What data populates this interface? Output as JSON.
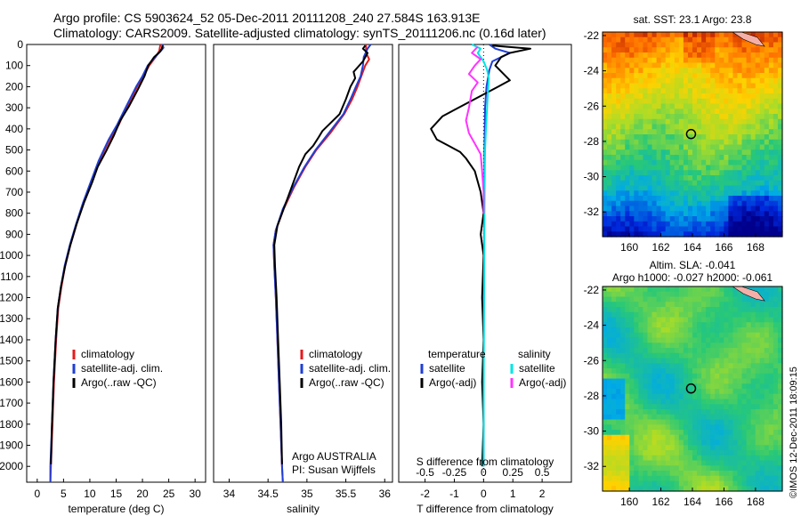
{
  "title_line1": "Argo profile: CS 5903624_52 05-Dec-2011 20111208_240 27.584S 163.913E",
  "title_line2": "Climatology: CARS2009. Satellite-adjusted climatology: synTS_20111206.nc (0.16d later)",
  "credit": "©IMOS 12-Dec-2011 18:09:15",
  "colors": {
    "climatology": "#e41a1c",
    "satellite": "#1f3fd6",
    "argo": "#000000",
    "satellite_salinity": "#00e5e5",
    "argo_salinity": "#ff33ff"
  },
  "chart_data": [
    {
      "id": "temperature",
      "type": "line",
      "xlabel": "temperature (deg C)",
      "ylabel": "",
      "xlim": [
        -2,
        32
      ],
      "ylim": [
        2075,
        0
      ],
      "xticks": [
        0,
        5,
        10,
        15,
        20,
        25,
        30
      ],
      "yticks": [
        0,
        100,
        200,
        300,
        400,
        500,
        600,
        700,
        800,
        900,
        1000,
        1100,
        1200,
        1300,
        1400,
        1500,
        1600,
        1700,
        1800,
        1900,
        2000
      ],
      "legend": [
        "climatology",
        "satellite-adj. clim.",
        "Argo(..raw -QC)"
      ],
      "legend_position": "lower-right",
      "series": [
        {
          "name": "climatology",
          "color": "#e41a1c",
          "points": [
            [
              23.4,
              0
            ],
            [
              23.2,
              30
            ],
            [
              22.5,
              60
            ],
            [
              21.3,
              100
            ],
            [
              20.2,
              150
            ],
            [
              19,
              200
            ],
            [
              17,
              300
            ],
            [
              15.5,
              380
            ],
            [
              13.8,
              450
            ],
            [
              11.8,
              550
            ],
            [
              10.3,
              650
            ],
            [
              8.8,
              750
            ],
            [
              7.5,
              850
            ],
            [
              6.3,
              950
            ],
            [
              5.3,
              1050
            ],
            [
              4.6,
              1150
            ],
            [
              4,
              1250
            ],
            [
              3.6,
              1400
            ],
            [
              3.2,
              1600
            ],
            [
              2.9,
              1800
            ],
            [
              2.6,
              2000
            ],
            [
              2.5,
              2075
            ]
          ]
        },
        {
          "name": "satellite-adj. clim.",
          "color": "#1f3fd6",
          "points": [
            [
              23.8,
              0
            ],
            [
              24,
              15
            ],
            [
              23.5,
              30
            ],
            [
              22.4,
              60
            ],
            [
              21,
              100
            ],
            [
              20,
              150
            ],
            [
              18.8,
              200
            ],
            [
              16.8,
              300
            ],
            [
              15.2,
              380
            ],
            [
              13.6,
              450
            ],
            [
              11.7,
              550
            ],
            [
              10.2,
              650
            ],
            [
              8.7,
              750
            ],
            [
              7.4,
              850
            ],
            [
              6.2,
              950
            ],
            [
              5.2,
              1050
            ],
            [
              4.5,
              1150
            ],
            [
              3.9,
              1250
            ],
            [
              3.5,
              1400
            ],
            [
              3.1,
              1600
            ],
            [
              2.8,
              1800
            ],
            [
              2.5,
              2000
            ],
            [
              2.5,
              2075
            ]
          ]
        },
        {
          "name": "Argo(..raw -QC)",
          "color": "#000000",
          "points": [
            [
              23.8,
              5
            ],
            [
              23.7,
              20
            ],
            [
              23.3,
              35
            ],
            [
              22.2,
              60
            ],
            [
              21.1,
              100
            ],
            [
              20.4,
              150
            ],
            [
              19.2,
              210
            ],
            [
              17.5,
              290
            ],
            [
              15.8,
              360
            ],
            [
              14.6,
              430
            ],
            [
              13.2,
              500
            ],
            [
              11.5,
              580
            ],
            [
              10.5,
              650
            ],
            [
              8.9,
              750
            ],
            [
              7.5,
              850
            ],
            [
              6.3,
              950
            ],
            [
              5.3,
              1050
            ],
            [
              4.5,
              1150
            ],
            [
              3.9,
              1250
            ],
            [
              3.5,
              1400
            ],
            [
              3.1,
              1600
            ],
            [
              2.8,
              1800
            ],
            [
              2.6,
              1990
            ]
          ]
        }
      ]
    },
    {
      "id": "salinity",
      "type": "line",
      "xlabel": "salinity",
      "ylabel": "",
      "xlim": [
        33.8,
        36.1
      ],
      "ylim": [
        2075,
        0
      ],
      "xticks": [
        34,
        34.5,
        35,
        35.5,
        36
      ],
      "xticklabels": [
        "34",
        "34.5",
        "35",
        "35.5",
        "36"
      ],
      "legend": [
        "climatology",
        "satellite-adj. clim.",
        "Argo(..raw -QC)"
      ],
      "legend_position": "lower-right",
      "annotations": [
        "Argo AUSTRALIA",
        "PI: Susan Wijffels"
      ],
      "series": [
        {
          "name": "climatology",
          "color": "#e41a1c",
          "points": [
            [
              35.76,
              0
            ],
            [
              35.76,
              40
            ],
            [
              35.8,
              70
            ],
            [
              35.75,
              100
            ],
            [
              35.7,
              150
            ],
            [
              35.65,
              200
            ],
            [
              35.58,
              260
            ],
            [
              35.48,
              330
            ],
            [
              35.3,
              420
            ],
            [
              35.12,
              500
            ],
            [
              34.98,
              580
            ],
            [
              34.83,
              680
            ],
            [
              34.7,
              780
            ],
            [
              34.6,
              880
            ],
            [
              34.57,
              950
            ],
            [
              34.58,
              1050
            ],
            [
              34.6,
              1200
            ],
            [
              34.62,
              1400
            ],
            [
              34.64,
              1600
            ],
            [
              34.66,
              1800
            ],
            [
              34.68,
              2000
            ],
            [
              34.69,
              2075
            ]
          ]
        },
        {
          "name": "satellite-adj. clim.",
          "color": "#1f3fd6",
          "points": [
            [
              35.82,
              0
            ],
            [
              35.78,
              20
            ],
            [
              35.73,
              60
            ],
            [
              35.72,
              100
            ],
            [
              35.69,
              150
            ],
            [
              35.63,
              200
            ],
            [
              35.56,
              260
            ],
            [
              35.47,
              330
            ],
            [
              35.28,
              420
            ],
            [
              35.11,
              500
            ],
            [
              34.97,
              580
            ],
            [
              34.82,
              680
            ],
            [
              34.69,
              780
            ],
            [
              34.6,
              880
            ],
            [
              34.57,
              950
            ],
            [
              34.58,
              1050
            ],
            [
              34.6,
              1200
            ],
            [
              34.62,
              1400
            ],
            [
              34.64,
              1600
            ],
            [
              34.66,
              1800
            ],
            [
              34.68,
              2000
            ],
            [
              34.69,
              2075
            ]
          ]
        },
        {
          "name": "Argo(..raw -QC)",
          "color": "#000000",
          "points": [
            [
              35.75,
              5
            ],
            [
              35.72,
              20
            ],
            [
              35.78,
              40
            ],
            [
              35.72,
              80
            ],
            [
              35.6,
              130
            ],
            [
              35.62,
              160
            ],
            [
              35.56,
              200
            ],
            [
              35.5,
              260
            ],
            [
              35.42,
              330
            ],
            [
              35.2,
              410
            ],
            [
              35.15,
              440
            ],
            [
              35.08,
              480
            ],
            [
              34.98,
              520
            ],
            [
              34.9,
              580
            ],
            [
              34.82,
              660
            ],
            [
              34.72,
              760
            ],
            [
              34.62,
              860
            ],
            [
              34.58,
              950
            ],
            [
              34.59,
              1050
            ],
            [
              34.61,
              1200
            ],
            [
              34.63,
              1400
            ],
            [
              34.65,
              1600
            ],
            [
              34.67,
              1800
            ],
            [
              34.68,
              1990
            ]
          ]
        }
      ]
    },
    {
      "id": "difference",
      "type": "line",
      "xlabel": "T difference from climatology",
      "xlabel_secondary": "S difference from climatology",
      "xlim": [
        -2.9,
        3.0
      ],
      "ylim": [
        2075,
        0
      ],
      "xticks": [
        -2,
        -1,
        0,
        1,
        2
      ],
      "secondary_xticks": [
        -0.5,
        -0.25,
        0,
        0.25,
        0.5
      ],
      "secondary_xticklabels": [
        "-0.5",
        "-0.25",
        "0",
        "0.25",
        "0.5"
      ],
      "secondary_scale": 4,
      "legend_temperature": {
        "heading": "temperature",
        "entries": [
          "satellite",
          "Argo(-adj)"
        ]
      },
      "legend_salinity": {
        "heading": "salinity",
        "entries": [
          "satellite",
          "Argo(-adj)"
        ]
      },
      "series": [
        {
          "name": "temperature satellite",
          "color": "#1f3fd6",
          "points": [
            [
              0.2,
              0
            ],
            [
              0.4,
              20
            ],
            [
              0.9,
              40
            ],
            [
              0.6,
              60
            ],
            [
              0.3,
              80
            ],
            [
              0.2,
              120
            ],
            [
              0.1,
              200
            ],
            [
              0.05,
              300
            ],
            [
              0.03,
              500
            ],
            [
              0.02,
              800
            ],
            [
              0.01,
              1200
            ],
            [
              0,
              1600
            ],
            [
              0,
              2000
            ]
          ]
        },
        {
          "name": "temperature Argo(-adj)",
          "color": "#000000",
          "points": [
            [
              0.3,
              5
            ],
            [
              1.6,
              20
            ],
            [
              0.9,
              40
            ],
            [
              0.6,
              60
            ],
            [
              0.4,
              100
            ],
            [
              0.9,
              170
            ],
            [
              0.5,
              200
            ],
            [
              -1.4,
              340
            ],
            [
              -1.8,
              400
            ],
            [
              -1.6,
              450
            ],
            [
              -1.2,
              480
            ],
            [
              -0.8,
              510
            ],
            [
              -0.6,
              540
            ],
            [
              -0.3,
              600
            ],
            [
              -0.1,
              700
            ],
            [
              0,
              800
            ],
            [
              -0.1,
              900
            ],
            [
              0,
              1000
            ],
            [
              -0.05,
              1200
            ],
            [
              0,
              1400
            ],
            [
              -0.05,
              1600
            ],
            [
              0,
              1800
            ],
            [
              -0.05,
              2000
            ]
          ]
        },
        {
          "name": "salinity satellite",
          "color": "#00e5e5",
          "points": [
            [
              -0.4,
              0
            ],
            [
              -0.1,
              20
            ],
            [
              -0.2,
              40
            ],
            [
              0,
              80
            ],
            [
              0.12,
              120
            ],
            [
              0.18,
              160
            ],
            [
              0.15,
              220
            ],
            [
              0.12,
              300
            ],
            [
              0.08,
              400
            ],
            [
              0.05,
              500
            ],
            [
              0.04,
              600
            ],
            [
              0.03,
              800
            ],
            [
              0.02,
              1000
            ],
            [
              0.01,
              1400
            ],
            [
              0,
              1800
            ],
            [
              0,
              2000
            ]
          ]
        },
        {
          "name": "salinity Argo(-adj)",
          "color": "#ff33ff",
          "points": [
            [
              -0.2,
              10
            ],
            [
              -0.4,
              40
            ],
            [
              -0.1,
              70
            ],
            [
              -0.3,
              100
            ],
            [
              -0.5,
              140
            ],
            [
              -0.2,
              180
            ],
            [
              -0.4,
              220
            ],
            [
              -0.5,
              300
            ],
            [
              -0.6,
              360
            ],
            [
              -0.5,
              420
            ],
            [
              -0.3,
              470
            ],
            [
              -0.1,
              520
            ],
            [
              -0.05,
              600
            ],
            [
              0,
              700
            ],
            [
              0,
              800
            ]
          ]
        }
      ]
    },
    {
      "id": "sst_map",
      "type": "heatmap",
      "title": "sat. SST: 23.1  Argo: 23.8",
      "xlim": [
        158.3,
        169.7
      ],
      "ylim": [
        -33.4,
        -21.8
      ],
      "xticks": [
        160,
        162,
        164,
        166,
        168
      ],
      "yticks": [
        -22,
        -24,
        -26,
        -28,
        -30,
        -32
      ],
      "marker": {
        "lon": 163.913,
        "lat": -27.584
      }
    },
    {
      "id": "sla_map",
      "type": "heatmap",
      "title": "Altim. SLA: -0.041",
      "subtitle": "Argo h1000: -0.027  h2000: -0.061",
      "xlim": [
        158.3,
        169.7
      ],
      "ylim": [
        -33.4,
        -21.8
      ],
      "xticks": [
        160,
        162,
        164,
        166,
        168
      ],
      "yticks": [
        -22,
        -24,
        -26,
        -28,
        -30,
        -32
      ],
      "marker": {
        "lon": 163.913,
        "lat": -27.584
      }
    }
  ]
}
